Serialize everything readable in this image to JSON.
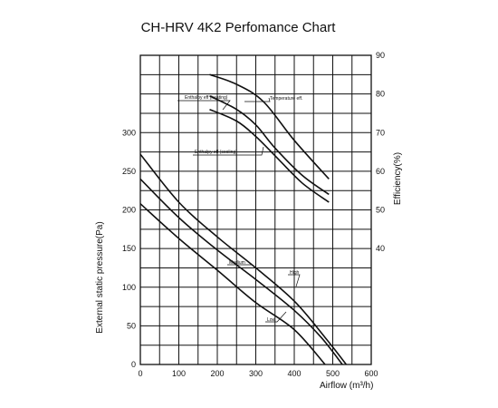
{
  "chart_data": {
    "type": "line",
    "title": "CH-HRV 4K2  Perfomance Chart",
    "xlabel": "Airflow (m³/h)",
    "ylabel": "External static pressure(Pa)",
    "y2label": "Efficiency(%)",
    "xlim": [
      0,
      600
    ],
    "ylim": [
      0,
      400
    ],
    "y2lim": [
      10,
      90
    ],
    "xticks": [
      0,
      100,
      200,
      300,
      400,
      500,
      600
    ],
    "xtick_labels": [
      "0",
      "100",
      "200",
      "300",
      "400",
      "500",
      "600"
    ],
    "yticks": [
      0,
      50,
      100,
      150,
      200,
      250,
      300
    ],
    "ytick_labels": [
      "0",
      "50",
      "100",
      "150",
      "200",
      "250",
      "300"
    ],
    "y2ticks": [
      40,
      50,
      60,
      70,
      80,
      90
    ],
    "y2tick_labels": [
      "40",
      "50",
      "60",
      "70",
      "80",
      "90"
    ],
    "grid": true,
    "series": [
      {
        "name": "High",
        "axis": "left",
        "x": [
          0,
          100,
          200,
          300,
          400,
          480,
          535
        ],
        "y": [
          272,
          210,
          165,
          125,
          82,
          35,
          0
        ]
      },
      {
        "name": "Medium",
        "axis": "left",
        "x": [
          0,
          100,
          200,
          300,
          400,
          470,
          525
        ],
        "y": [
          240,
          190,
          148,
          110,
          70,
          35,
          0
        ]
      },
      {
        "name": "Low",
        "axis": "left",
        "x": [
          0,
          100,
          200,
          300,
          400,
          480
        ],
        "y": [
          208,
          163,
          122,
          80,
          45,
          0
        ]
      },
      {
        "name": "Temperature eff.",
        "axis": "right",
        "x": [
          180,
          250,
          320,
          400,
          490
        ],
        "y": [
          85,
          82.5,
          78,
          68,
          58
        ]
      },
      {
        "name": "Enthalpy eff (heating)",
        "axis": "right",
        "x": [
          180,
          250,
          300,
          350,
          420,
          490
        ],
        "y": [
          79.5,
          76,
          72,
          66,
          59,
          54
        ]
      },
      {
        "name": "Enthalpy eff (cooling)",
        "axis": "right",
        "x": [
          180,
          250,
          300,
          350,
          420,
          490
        ],
        "y": [
          76,
          73,
          69,
          64,
          57,
          52
        ]
      }
    ],
    "labels": {
      "high": "High",
      "medium": "Medium",
      "low": "Low",
      "temp": "Temperature eff.",
      "heating": "Enthalpy eff (heating)",
      "cooling": "Enthalpy eff (cooling)"
    }
  }
}
